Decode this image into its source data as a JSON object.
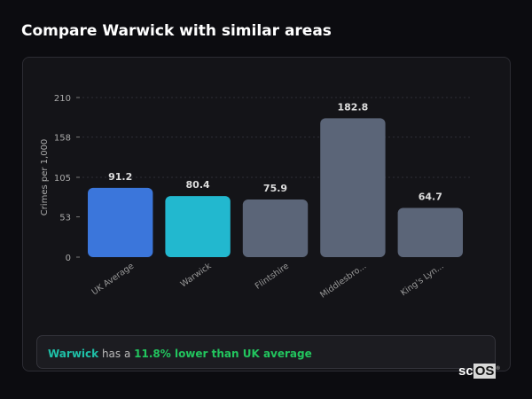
{
  "header": {
    "title": "Compare Warwick with similar areas"
  },
  "chart_data": {
    "type": "bar",
    "title": "Compare Warwick with similar areas",
    "xlabel": "",
    "ylabel": "Crimes per 1,000",
    "categories": [
      "UK Average",
      "Warwick",
      "Flintshire",
      "Middlesbro...",
      "King's Lyn..."
    ],
    "values": [
      91.2,
      80.4,
      75.9,
      182.8,
      64.7
    ],
    "value_labels": [
      "91.2",
      "80.4",
      "75.9",
      "182.8",
      "64.7"
    ],
    "colors": [
      "#3b76db",
      "#22b8cf",
      "#5b6578",
      "#5b6578",
      "#5b6578"
    ],
    "yticks": [
      0,
      53,
      105,
      158,
      210
    ],
    "ylim": [
      0,
      210
    ],
    "grid": true
  },
  "summary": {
    "area": "Warwick",
    "middle": " has a ",
    "comparison": "11.8% lower than UK average"
  },
  "logo": {
    "text_a": "sc",
    "text_b": "OS",
    "mark": "®"
  }
}
